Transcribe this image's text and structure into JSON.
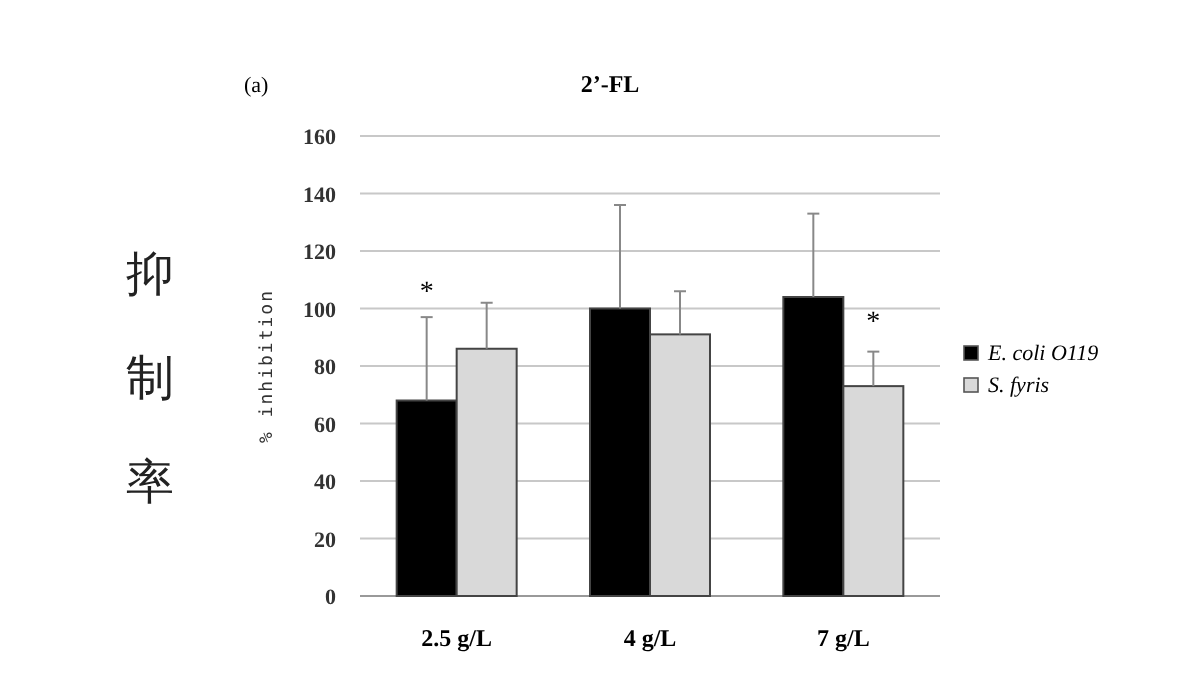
{
  "chart_data": {
    "type": "bar",
    "title": "2’-FL",
    "ylabel": "% inhibition",
    "categories": [
      "2.5 g/L",
      "4 g/L",
      "7 g/L"
    ],
    "series": [
      {
        "name": "E. coli O119",
        "color": "#000000",
        "values": [
          68,
          100,
          104
        ],
        "errors": [
          [
            68,
            97
          ],
          [
            100,
            136
          ],
          [
            104,
            133
          ]
        ]
      },
      {
        "name": "S. fyris",
        "color": "#d9d9d9",
        "values": [
          86,
          91,
          73
        ],
        "errors": [
          [
            86,
            102
          ],
          [
            91,
            106
          ],
          [
            73,
            85
          ]
        ]
      }
    ],
    "ylim": [
      0,
      160
    ],
    "yticks": [
      0,
      20,
      40,
      60,
      80,
      100,
      120,
      140,
      160
    ],
    "grid": "y",
    "legend": "right",
    "annotations": [
      "(a)",
      "抑制率",
      "*",
      "*"
    ]
  }
}
